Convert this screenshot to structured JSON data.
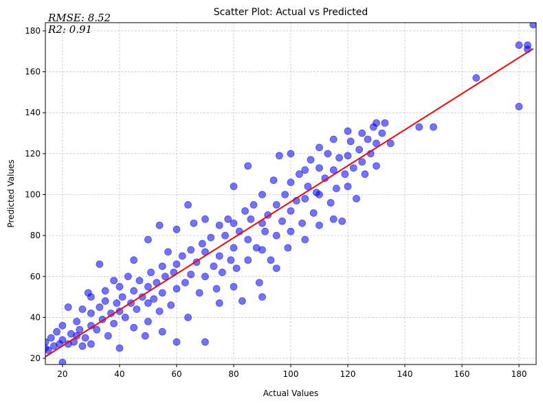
{
  "chart_data": {
    "type": "scatter",
    "title": "Scatter Plot: Actual vs Predicted",
    "xlabel": "Actual Values",
    "ylabel": "Predicted Values",
    "xlim": [
      14,
      186
    ],
    "ylim": [
      17,
      184
    ],
    "xticks": [
      20,
      40,
      60,
      80,
      100,
      120,
      140,
      160,
      180
    ],
    "yticks": [
      20,
      40,
      60,
      80,
      100,
      120,
      140,
      160,
      180
    ],
    "grid": true,
    "annotations": [
      "RMSE: 8.52",
      "R2: 0.91"
    ],
    "point_color": "#0000ff",
    "line_color": "#ff0000",
    "fit_line": {
      "slope": 0.88,
      "intercept": 8.5,
      "x_range": [
        14,
        185
      ]
    },
    "series": [
      {
        "points": [
          [
            14,
            25
          ],
          [
            14,
            28
          ],
          [
            15,
            24
          ],
          [
            16,
            30
          ],
          [
            17,
            26
          ],
          [
            18,
            33
          ],
          [
            19,
            27
          ],
          [
            20,
            29
          ],
          [
            20,
            36
          ],
          [
            20,
            18
          ],
          [
            22,
            27
          ],
          [
            22,
            45
          ],
          [
            23,
            32
          ],
          [
            24,
            28
          ],
          [
            25,
            31
          ],
          [
            25,
            38
          ],
          [
            26,
            34
          ],
          [
            27,
            44
          ],
          [
            27,
            26
          ],
          [
            28,
            30
          ],
          [
            29,
            52
          ],
          [
            30,
            36
          ],
          [
            30,
            42
          ],
          [
            30,
            50
          ],
          [
            30,
            27
          ],
          [
            32,
            34
          ],
          [
            33,
            66
          ],
          [
            33,
            45
          ],
          [
            34,
            39
          ],
          [
            35,
            48
          ],
          [
            35,
            53
          ],
          [
            36,
            31
          ],
          [
            37,
            42
          ],
          [
            38,
            58
          ],
          [
            38,
            37
          ],
          [
            39,
            47
          ],
          [
            40,
            55
          ],
          [
            40,
            43
          ],
          [
            40,
            25
          ],
          [
            41,
            50
          ],
          [
            42,
            40
          ],
          [
            43,
            60
          ],
          [
            44,
            47
          ],
          [
            45,
            53
          ],
          [
            45,
            68
          ],
          [
            45,
            35
          ],
          [
            46,
            44
          ],
          [
            47,
            58
          ],
          [
            48,
            50
          ],
          [
            49,
            31
          ],
          [
            50,
            78
          ],
          [
            50,
            55
          ],
          [
            50,
            47
          ],
          [
            50,
            38
          ],
          [
            51,
            62
          ],
          [
            52,
            49
          ],
          [
            53,
            57
          ],
          [
            54,
            85
          ],
          [
            54,
            43
          ],
          [
            55,
            65
          ],
          [
            55,
            52
          ],
          [
            55,
            33
          ],
          [
            56,
            60
          ],
          [
            57,
            72
          ],
          [
            58,
            46
          ],
          [
            59,
            62
          ],
          [
            60,
            83
          ],
          [
            60,
            66
          ],
          [
            60,
            54
          ],
          [
            60,
            28
          ],
          [
            62,
            70
          ],
          [
            63,
            57
          ],
          [
            64,
            95
          ],
          [
            64,
            40
          ],
          [
            65,
            73
          ],
          [
            65,
            61
          ],
          [
            66,
            86
          ],
          [
            67,
            67
          ],
          [
            68,
            52
          ],
          [
            69,
            76
          ],
          [
            70,
            88
          ],
          [
            70,
            72
          ],
          [
            70,
            60
          ],
          [
            70,
            28
          ],
          [
            72,
            79
          ],
          [
            73,
            65
          ],
          [
            74,
            54
          ],
          [
            75,
            85
          ],
          [
            75,
            70
          ],
          [
            75,
            47
          ],
          [
            76,
            62
          ],
          [
            77,
            80
          ],
          [
            78,
            88
          ],
          [
            79,
            68
          ],
          [
            80,
            104
          ],
          [
            80,
            86
          ],
          [
            80,
            74
          ],
          [
            80,
            55
          ],
          [
            81,
            64
          ],
          [
            82,
            82
          ],
          [
            83,
            48
          ],
          [
            84,
            92
          ],
          [
            85,
            114
          ],
          [
            85,
            78
          ],
          [
            85,
            68
          ],
          [
            86,
            88
          ],
          [
            87,
            95
          ],
          [
            88,
            74
          ],
          [
            89,
            57
          ],
          [
            90,
            100
          ],
          [
            90,
            86
          ],
          [
            90,
            73
          ],
          [
            90,
            50
          ],
          [
            91,
            82
          ],
          [
            92,
            90
          ],
          [
            93,
            68
          ],
          [
            94,
            107
          ],
          [
            95,
            95
          ],
          [
            95,
            80
          ],
          [
            95,
            64
          ],
          [
            96,
            119
          ],
          [
            97,
            87
          ],
          [
            98,
            100
          ],
          [
            99,
            74
          ],
          [
            100,
            120
          ],
          [
            100,
            106
          ],
          [
            100,
            92
          ],
          [
            100,
            82
          ],
          [
            102,
            97
          ],
          [
            103,
            110
          ],
          [
            104,
            86
          ],
          [
            105,
            112
          ],
          [
            105,
            98
          ],
          [
            105,
            78
          ],
          [
            106,
            104
          ],
          [
            107,
            117
          ],
          [
            108,
            91
          ],
          [
            109,
            101
          ],
          [
            110,
            123
          ],
          [
            110,
            113
          ],
          [
            110,
            100
          ],
          [
            110,
            85
          ],
          [
            112,
            108
          ],
          [
            113,
            120
          ],
          [
            114,
            96
          ],
          [
            115,
            127
          ],
          [
            115,
            112
          ],
          [
            115,
            88
          ],
          [
            116,
            103
          ],
          [
            117,
            118
          ],
          [
            118,
            87
          ],
          [
            119,
            110
          ],
          [
            120,
            131
          ],
          [
            120,
            119
          ],
          [
            120,
            104
          ],
          [
            121,
            126
          ],
          [
            122,
            113
          ],
          [
            123,
            98
          ],
          [
            124,
            122
          ],
          [
            125,
            130
          ],
          [
            125,
            116
          ],
          [
            126,
            110
          ],
          [
            127,
            127
          ],
          [
            128,
            120
          ],
          [
            129,
            133
          ],
          [
            130,
            135
          ],
          [
            130,
            125
          ],
          [
            130,
            114
          ],
          [
            132,
            130
          ],
          [
            133,
            135
          ],
          [
            135,
            125
          ],
          [
            145,
            133
          ],
          [
            150,
            133
          ],
          [
            165,
            157
          ],
          [
            180,
            173
          ],
          [
            180,
            143
          ],
          [
            183,
            173
          ],
          [
            183,
            171
          ],
          [
            185,
            183
          ]
        ]
      }
    ]
  }
}
